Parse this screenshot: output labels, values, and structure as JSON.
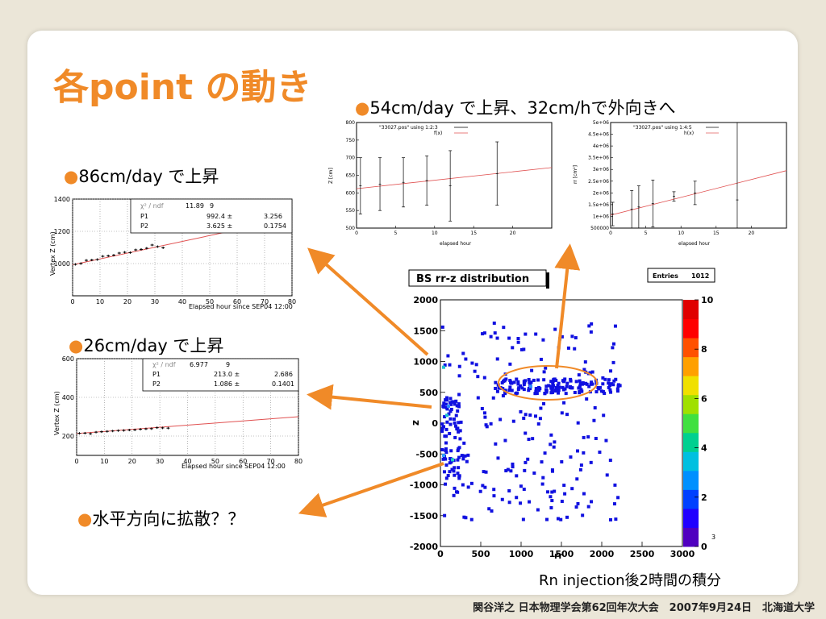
{
  "slide": {
    "title": "各point の動き",
    "bullets": {
      "b1": "86cm/day で上昇",
      "b2": "26cm/day で上昇",
      "b3": "水平方向に拡散？？",
      "b4": "54cm/day で上昇、32cm/hで外向きへ"
    },
    "bullet_marker": "●",
    "caption": "Rn injection後2時間の積分",
    "footer": "関谷洋之 日本物理学会第62回年次大会　2007年9月24日　北海道大学"
  },
  "colors": {
    "accent": "#f08a28",
    "fit_line": "#e05050",
    "point": "#1010e0"
  },
  "fit1": {
    "rows": [
      {
        "label": "χ² / ndf",
        "value": "11.89",
        "right": "9"
      },
      {
        "label": "P1",
        "value": "992.4 ±",
        "right": "3.256"
      },
      {
        "label": "P2",
        "value": "3.625 ±",
        "right": "0.1754"
      }
    ],
    "ylabel": "Vertex Z (cm)",
    "xlabel": "Elapsed hour since SEP04 12:00"
  },
  "fit2": {
    "rows": [
      {
        "label": "χ² / ndf",
        "value": "6.977",
        "right": "9"
      },
      {
        "label": "P1",
        "value": "213.0 ±",
        "right": "2.686"
      },
      {
        "label": "P2",
        "value": "1.086 ±",
        "right": "0.1401"
      }
    ],
    "ylabel": "Vertex Z (cm)",
    "xlabel": "Elapsed hour since SEP04 12:00"
  },
  "gp1": {
    "legend1": "\"33027.pos\" using 1:2:3",
    "legend2": "f(x)",
    "ylabel": "Z [cm]",
    "xlabel": "elapsed hour"
  },
  "gp2": {
    "legend1": "\"33027.pos\" using 1:4:5",
    "legend2": "h(x)",
    "ylabel": "rr [cm²]",
    "xlabel": "elapsed hour"
  },
  "hist": {
    "title": "BS rr-z distribution",
    "stats_label": "Entries",
    "stats_value": "1012",
    "xlabel": "rr",
    "ylabel": "z",
    "color_max_exp": "3"
  },
  "chart_data": [
    {
      "type": "scatter",
      "title": "",
      "xlabel": "Elapsed hour since SEP04 12:00",
      "ylabel": "Vertex Z (cm)",
      "xlim": [
        0,
        80
      ],
      "ylim": [
        800,
        1400
      ],
      "x_ticks": [
        0,
        10,
        20,
        30,
        40,
        50,
        60,
        70,
        80
      ],
      "y_ticks": [
        1000,
        1200,
        1400
      ],
      "x": [
        1,
        3,
        5,
        7,
        9,
        11,
        13,
        15,
        17,
        19,
        21,
        23,
        25,
        27,
        29,
        31,
        33
      ],
      "y": [
        995,
        1000,
        1020,
        1022,
        1025,
        1045,
        1048,
        1052,
        1065,
        1070,
        1068,
        1085,
        1088,
        1095,
        1115,
        1105,
        1098
      ],
      "fit": {
        "p1": 992.4,
        "p2": 3.625
      }
    },
    {
      "type": "scatter",
      "title": "",
      "xlabel": "Elapsed hour since SEP04 12:00",
      "ylabel": "Vertex Z (cm)",
      "xlim": [
        0,
        80
      ],
      "ylim": [
        100,
        600
      ],
      "x_ticks": [
        0,
        10,
        20,
        30,
        40,
        50,
        60,
        70,
        80
      ],
      "y_ticks": [
        200,
        400,
        600
      ],
      "x": [
        1,
        3,
        5,
        7,
        9,
        11,
        13,
        15,
        17,
        19,
        21,
        23,
        25,
        27,
        29,
        31,
        33
      ],
      "y": [
        214,
        215,
        212,
        220,
        222,
        224,
        226,
        228,
        229,
        231,
        232,
        235,
        237,
        238,
        243,
        242,
        241
      ],
      "fit": {
        "p1": 213.0,
        "p2": 1.086
      }
    },
    {
      "type": "scatter",
      "title": "",
      "xlabel": "elapsed hour",
      "ylabel": "Z [cm]",
      "xlim": [
        0,
        25
      ],
      "ylim": [
        500,
        800
      ],
      "x_ticks": [
        0,
        5,
        10,
        15,
        20
      ],
      "y_ticks": [
        500,
        550,
        600,
        650,
        700,
        750,
        800
      ],
      "x": [
        0.5,
        3,
        6,
        9,
        12,
        18
      ],
      "y": [
        620,
        625,
        630,
        635,
        620,
        655
      ],
      "err": [
        80,
        75,
        70,
        70,
        100,
        90
      ],
      "series": [
        {
          "name": "\"33027.pos\" using 1:2:3"
        },
        {
          "name": "f(x)"
        }
      ],
      "fit_line": [
        [
          0,
          612
        ],
        [
          25,
          672
        ]
      ]
    },
    {
      "type": "scatter",
      "title": "",
      "xlabel": "elapsed hour",
      "ylabel": "rr [cm²]",
      "xlim": [
        0,
        25
      ],
      "ylim": [
        500000,
        5000000
      ],
      "x_ticks": [
        0,
        5,
        10,
        15,
        20
      ],
      "y_ticks": [
        500000,
        1000000,
        1500000,
        2000000,
        2500000,
        3000000,
        3500000,
        4000000,
        4500000,
        5000000
      ],
      "y_tick_labels": [
        "500000",
        "1e+06",
        "1.5e+06",
        "2e+06",
        "2.5e+06",
        "3e+06",
        "3.5e+06",
        "4e+06",
        "4.5e+06",
        "5e+06"
      ],
      "x": [
        0.3,
        3,
        4,
        6,
        9,
        12,
        18
      ],
      "y": [
        1100000,
        1300000,
        1400000,
        1550000,
        1850000,
        2000000,
        1700000
      ],
      "err": [
        500000,
        800000,
        900000,
        1000000,
        200000,
        500000,
        3300000
      ],
      "series": [
        {
          "name": "\"33027.pos\" using 1:4:5"
        },
        {
          "name": "h(x)"
        }
      ],
      "fit_line": [
        [
          0,
          1050000
        ],
        [
          25,
          2950000
        ]
      ]
    },
    {
      "type": "heatmap",
      "title": "BS rr-z distribution",
      "xlabel": "rr",
      "ylabel": "z",
      "xlim": [
        0,
        3000
      ],
      "ylim": [
        -2000,
        2000
      ],
      "x_ticks": [
        0,
        500,
        1000,
        1500,
        2000,
        2500,
        3000
      ],
      "y_ticks": [
        -2000,
        -1500,
        -1000,
        -500,
        0,
        500,
        1000,
        1500,
        2000
      ],
      "color_ticks": [
        0,
        2,
        4,
        6,
        8,
        10
      ],
      "entries": 1012
    }
  ]
}
